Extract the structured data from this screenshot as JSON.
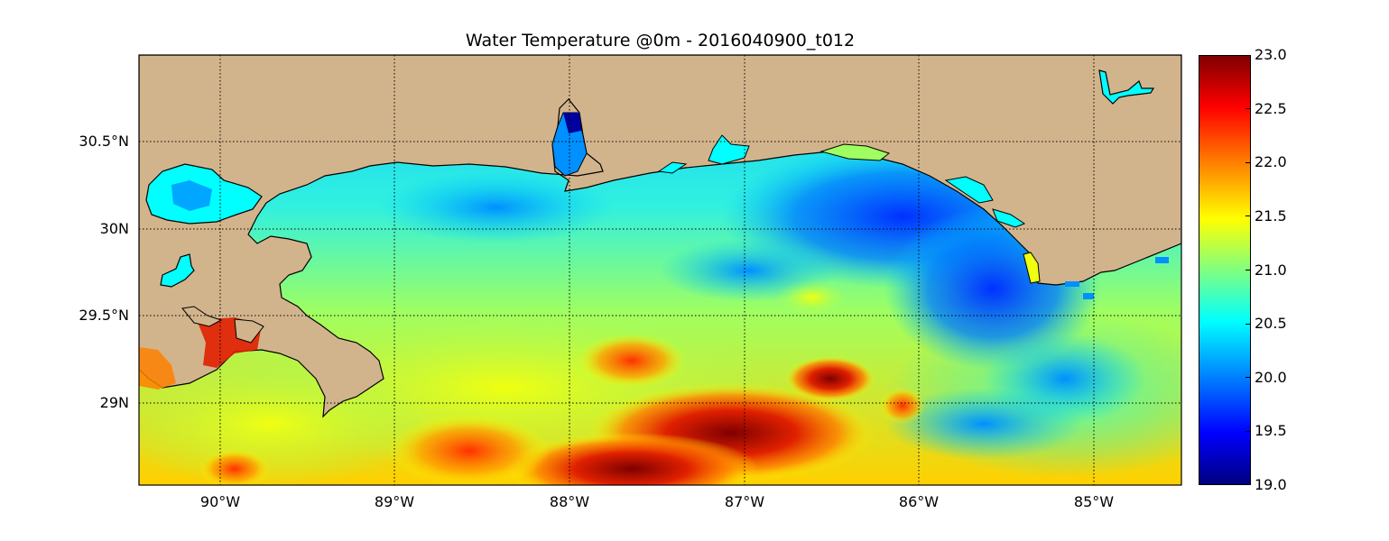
{
  "title": "Water Temperature @0m - 2016040900_t012",
  "map": {
    "latitude_labels": [
      "30.5°N",
      "30N",
      "29.5°N",
      "29N"
    ],
    "longitude_labels": [
      "90°W",
      "89°W",
      "88°W",
      "87°W",
      "86°W",
      "85°W"
    ],
    "land_color": "#d2b48c",
    "lake_color": "#00ffff",
    "gridlines": "dotted"
  },
  "colorbar": {
    "ticks": [
      "23.0",
      "22.5",
      "22.0",
      "21.5",
      "21.0",
      "20.5",
      "20.0",
      "19.5",
      "19.0"
    ],
    "range": [
      19.0,
      23.0
    ],
    "colormap": "jet"
  }
}
